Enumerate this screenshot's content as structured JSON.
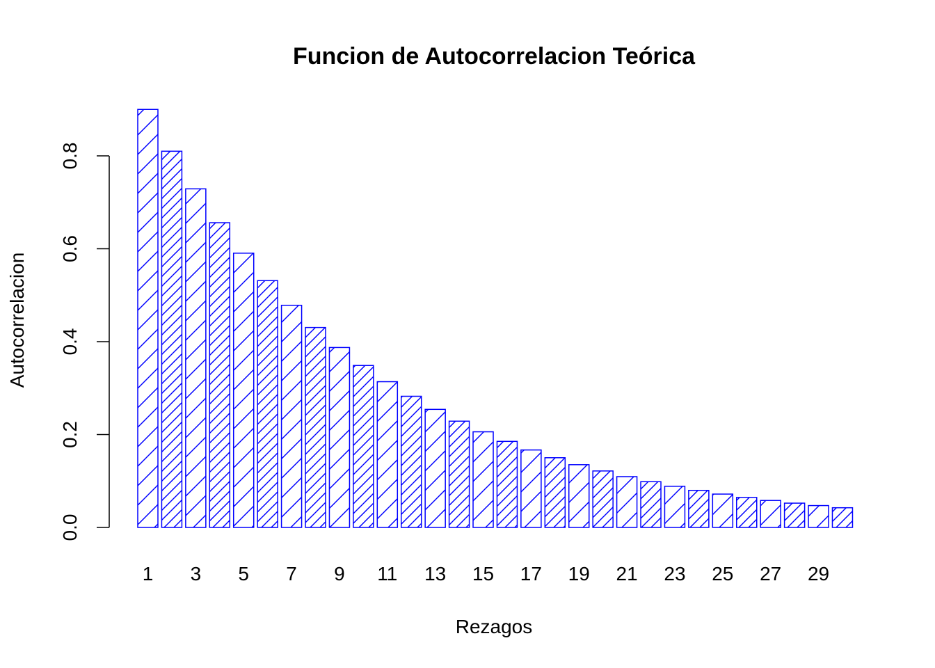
{
  "chart_data": {
    "type": "bar",
    "title": "Funcion de Autocorrelacion Teórica",
    "xlabel": "Rezagos",
    "ylabel": "Autocorrelacion",
    "categories": [
      "1",
      "2",
      "3",
      "4",
      "5",
      "6",
      "7",
      "8",
      "9",
      "10",
      "11",
      "12",
      "13",
      "14",
      "15",
      "16",
      "17",
      "18",
      "19",
      "20",
      "21",
      "22",
      "23",
      "24",
      "25",
      "26",
      "27",
      "28",
      "29",
      "30"
    ],
    "x_tick_labels": [
      "1",
      "3",
      "5",
      "7",
      "9",
      "11",
      "13",
      "15",
      "17",
      "19",
      "21",
      "23",
      "25",
      "27",
      "29"
    ],
    "values": [
      0.9,
      0.81,
      0.729,
      0.6561,
      0.5905,
      0.5314,
      0.4783,
      0.4305,
      0.3874,
      0.3487,
      0.3138,
      0.2824,
      0.2542,
      0.2288,
      0.2059,
      0.1853,
      0.1668,
      0.1501,
      0.1351,
      0.1216,
      0.1094,
      0.0985,
      0.0886,
      0.0798,
      0.0718,
      0.0646,
      0.0581,
      0.0523,
      0.0471,
      0.0424
    ],
    "yticks": [
      0.0,
      0.2,
      0.4,
      0.6,
      0.8
    ],
    "ytick_labels": [
      "0.0",
      "0.2",
      "0.4",
      "0.6",
      "0.8"
    ],
    "ylim": [
      0,
      0.9
    ],
    "grid": false,
    "colors": {
      "bar_border": "#0000ff",
      "hatch": "#0000ff",
      "text": "#000000"
    }
  }
}
